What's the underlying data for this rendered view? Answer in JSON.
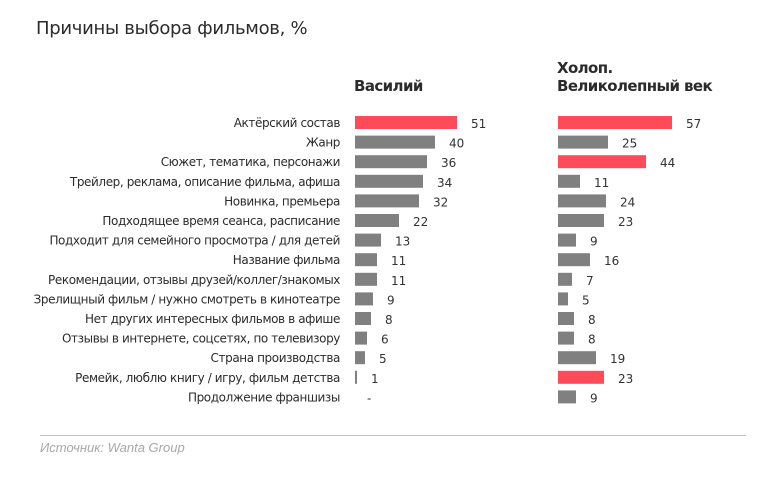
{
  "chart_data": {
    "type": "bar",
    "orientation": "horizontal",
    "title": "Причины выбора фильмов, %",
    "xlabel": "",
    "ylabel": "",
    "grid": false,
    "colors": {
      "highlight": "#ff4a5a",
      "default": "#808080"
    },
    "categories": [
      "Актёрский состав",
      "Жанр",
      "Сюжет, тематика, персонажи",
      "Трейлер, реклама, описание фильма, афиша",
      "Новинка, премьера",
      "Подходящее время сеанса, расписание",
      "Подходит для семейного просмотра / для детей",
      "Название фильма",
      "Рекомендации, отзывы друзей/коллег/знакомых",
      "Зрелищный фильм / нужно смотреть в кинотеатре",
      "Нет других интересных фильмов в афише",
      "Отзывы в интернете, соцсетях, по телевизору",
      "Страна производства",
      "Ремейк, люблю книгу / игру, фильм детства",
      "Продолжение франшизы"
    ],
    "series": [
      {
        "name": "Василий",
        "values": [
          51,
          40,
          36,
          34,
          32,
          22,
          13,
          11,
          11,
          9,
          8,
          6,
          5,
          1,
          null
        ],
        "labels": [
          "51",
          "40",
          "36",
          "34",
          "32",
          "22",
          "13",
          "11",
          "11",
          "9",
          "8",
          "6",
          "5",
          "1",
          "-"
        ],
        "highlight": [
          true,
          false,
          false,
          false,
          false,
          false,
          false,
          false,
          false,
          false,
          false,
          false,
          false,
          false,
          false
        ]
      },
      {
        "name": "Холоп. Великолепный век",
        "name_lines": [
          "Холоп.",
          "Великолепный век"
        ],
        "values": [
          57,
          25,
          44,
          11,
          24,
          23,
          9,
          16,
          7,
          5,
          8,
          8,
          19,
          23,
          9
        ],
        "labels": [
          "57",
          "25",
          "44",
          "11",
          "24",
          "23",
          "9",
          "16",
          "7",
          "5",
          "8",
          "8",
          "19",
          "23",
          "9"
        ],
        "highlight": [
          true,
          false,
          true,
          false,
          false,
          false,
          false,
          false,
          false,
          false,
          false,
          false,
          false,
          true,
          false
        ]
      }
    ],
    "xlim": [
      0,
      60
    ],
    "source": "Источник: Wanta Group"
  }
}
